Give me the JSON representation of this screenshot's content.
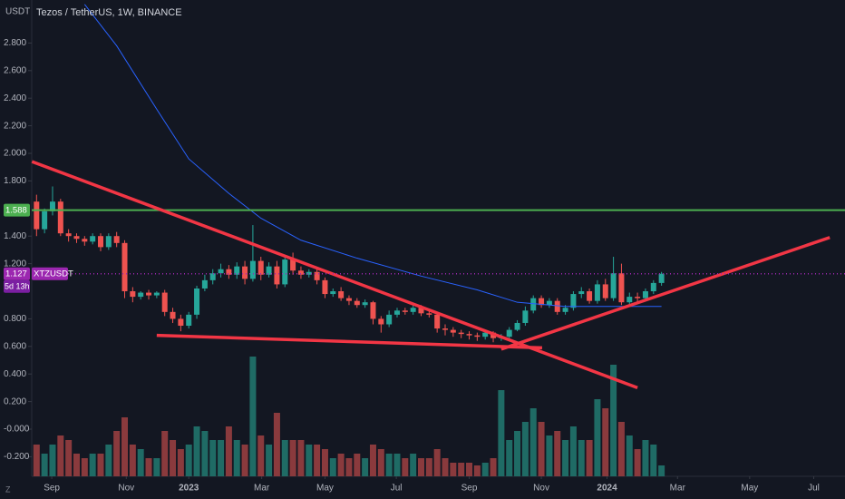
{
  "chart_data": {
    "type": "candlestick",
    "title": "Tezos / TetherUS, 1W, BINANCE",
    "currency": "USDT",
    "symbol": "XTZUSDT",
    "countdown": "5d 13h",
    "corner_label": "Z",
    "up_color": "#26a69a",
    "down_color": "#ef5350",
    "up_volume_color": "#1f6b65",
    "down_volume_color": "#8a3a3d",
    "open": [
      1.65,
      1.45,
      1.58,
      1.65,
      1.42,
      1.4,
      1.38,
      1.36,
      1.4,
      1.32,
      1.4,
      1.35,
      1.0,
      0.96,
      0.99,
      0.97,
      0.99,
      0.85,
      0.8,
      0.75,
      0.83,
      1.02,
      1.08,
      1.13,
      1.16,
      1.12,
      1.18,
      1.09,
      1.22,
      1.12,
      1.18,
      1.05,
      1.23,
      1.15,
      1.12,
      1.14,
      1.08,
      0.98,
      1.0,
      0.95,
      0.93,
      0.9,
      0.92,
      0.8,
      0.76,
      0.83,
      0.86,
      0.85,
      0.88,
      0.84,
      0.83,
      0.73,
      0.72,
      0.7,
      0.69,
      0.68,
      0.67,
      0.7,
      0.66,
      0.67,
      0.72,
      0.77,
      0.86,
      0.95,
      0.9,
      0.93,
      0.85,
      0.88,
      0.98,
      1.0,
      0.93,
      1.05,
      0.95,
      1.13,
      0.92,
      0.96,
      0.95,
      1.0,
      1.06
    ],
    "high": [
      1.7,
      1.6,
      1.76,
      1.67,
      1.45,
      1.42,
      1.4,
      1.42,
      1.42,
      1.42,
      1.43,
      1.37,
      1.03,
      1.0,
      1.01,
      1.0,
      1.01,
      0.88,
      0.83,
      0.85,
      1.04,
      1.12,
      1.16,
      1.2,
      1.19,
      1.21,
      1.22,
      1.48,
      1.25,
      1.21,
      1.22,
      1.26,
      1.28,
      1.18,
      1.16,
      1.16,
      1.1,
      1.02,
      1.03,
      0.97,
      0.95,
      0.94,
      0.93,
      0.82,
      0.86,
      0.88,
      0.88,
      0.9,
      0.9,
      0.86,
      0.85,
      0.76,
      0.74,
      0.72,
      0.71,
      0.7,
      0.72,
      0.71,
      0.69,
      0.74,
      0.79,
      0.89,
      0.97,
      0.97,
      0.95,
      0.95,
      0.9,
      1.0,
      1.03,
      1.02,
      1.08,
      1.09,
      1.25,
      1.2,
      0.99,
      0.99,
      1.02,
      1.08,
      1.14
    ],
    "low": [
      1.4,
      1.42,
      1.55,
      1.4,
      1.36,
      1.35,
      1.33,
      1.34,
      1.29,
      1.3,
      1.32,
      0.95,
      0.92,
      0.94,
      0.94,
      0.95,
      0.82,
      0.77,
      0.71,
      0.73,
      0.8,
      1.0,
      1.05,
      1.1,
      1.09,
      1.09,
      1.05,
      1.07,
      1.08,
      1.1,
      1.02,
      1.03,
      1.12,
      1.09,
      1.1,
      1.05,
      0.95,
      0.96,
      0.93,
      0.9,
      0.88,
      0.88,
      0.76,
      0.7,
      0.74,
      0.81,
      0.83,
      0.83,
      0.82,
      0.81,
      0.7,
      0.68,
      0.67,
      0.66,
      0.65,
      0.64,
      0.65,
      0.63,
      0.64,
      0.66,
      0.71,
      0.75,
      0.84,
      0.88,
      0.88,
      0.83,
      0.83,
      0.86,
      0.95,
      0.91,
      0.91,
      0.93,
      0.93,
      0.9,
      0.89,
      0.92,
      0.93,
      0.98,
      1.04
    ],
    "close": [
      1.45,
      1.58,
      1.65,
      1.42,
      1.4,
      1.38,
      1.36,
      1.4,
      1.32,
      1.4,
      1.35,
      1.0,
      0.96,
      0.99,
      0.97,
      0.99,
      0.85,
      0.8,
      0.75,
      0.83,
      1.02,
      1.08,
      1.13,
      1.16,
      1.12,
      1.18,
      1.09,
      1.22,
      1.12,
      1.18,
      1.05,
      1.23,
      1.15,
      1.12,
      1.14,
      1.08,
      0.98,
      1.0,
      0.95,
      0.93,
      0.9,
      0.92,
      0.8,
      0.76,
      0.83,
      0.86,
      0.85,
      0.88,
      0.84,
      0.83,
      0.73,
      0.72,
      0.7,
      0.69,
      0.68,
      0.67,
      0.7,
      0.66,
      0.67,
      0.72,
      0.77,
      0.86,
      0.95,
      0.9,
      0.93,
      0.85,
      0.88,
      0.98,
      1.0,
      0.93,
      1.05,
      0.95,
      1.13,
      0.92,
      0.96,
      0.95,
      1.0,
      1.06,
      1.127
    ],
    "volume": [
      35,
      25,
      35,
      45,
      40,
      25,
      20,
      25,
      25,
      35,
      50,
      65,
      35,
      30,
      20,
      20,
      50,
      40,
      30,
      35,
      55,
      50,
      40,
      40,
      55,
      40,
      35,
      132,
      45,
      35,
      70,
      40,
      40,
      40,
      35,
      35,
      30,
      20,
      25,
      20,
      25,
      20,
      35,
      30,
      25,
      25,
      20,
      25,
      20,
      20,
      30,
      20,
      15,
      15,
      15,
      12,
      15,
      20,
      95,
      40,
      50,
      60,
      75,
      60,
      45,
      50,
      40,
      55,
      40,
      40,
      85,
      75,
      123,
      60,
      45,
      30,
      40,
      35,
      12
    ],
    "ylim": [
      -0.342,
      3.112
    ],
    "yticks": [
      {
        "value": -0.2,
        "label": "-0.200"
      },
      {
        "value": 0,
        "label": "-0.000"
      },
      {
        "value": 0.2,
        "label": "0.200"
      },
      {
        "value": 0.4,
        "label": "0.400"
      },
      {
        "value": 0.6,
        "label": "0.600"
      },
      {
        "value": 0.8,
        "label": "0.800"
      },
      {
        "value": 1.2,
        "label": "1.200"
      },
      {
        "value": 1.4,
        "label": "1.400"
      },
      {
        "value": 1.8,
        "label": "1.800"
      },
      {
        "value": 2.0,
        "label": "2.000"
      },
      {
        "value": 2.2,
        "label": "2.200"
      },
      {
        "value": 2.4,
        "label": "2.400"
      },
      {
        "value": 2.6,
        "label": "2.600"
      },
      {
        "value": 2.8,
        "label": "2.800"
      }
    ],
    "xlim": [
      -0.6,
      100.9
    ],
    "xticks": [
      {
        "value": 1.9,
        "label": "Sep"
      },
      {
        "value": 11.2,
        "label": "Nov"
      },
      {
        "value": 19,
        "label": "2023"
      },
      {
        "value": 28.1,
        "label": "Mar"
      },
      {
        "value": 36,
        "label": "May"
      },
      {
        "value": 44.9,
        "label": "Jul"
      },
      {
        "value": 54,
        "label": "Sep"
      },
      {
        "value": 63,
        "label": "Nov"
      },
      {
        "value": 71.2,
        "label": "2024"
      },
      {
        "value": 80,
        "label": "Mar"
      },
      {
        "value": 89,
        "label": "May"
      },
      {
        "value": 97,
        "label": "Jul"
      }
    ],
    "grid": false,
    "ma": {
      "color": "#2962ff",
      "x": [
        6,
        10,
        15,
        19,
        24,
        28,
        33,
        40,
        48,
        55,
        60,
        66,
        72,
        78
      ],
      "values": [
        3.08,
        2.78,
        2.32,
        1.96,
        1.71,
        1.53,
        1.37,
        1.24,
        1.11,
        1.01,
        0.92,
        0.89,
        0.89,
        0.89
      ]
    },
    "levels": [
      {
        "value": 1.588,
        "color": "#4caf50"
      }
    ],
    "trendlines": [
      {
        "color": "#f23645",
        "x": [
          -0.57,
          75
        ],
        "values": [
          1.94,
          0.3
        ]
      },
      {
        "color": "#f23645",
        "x": [
          15,
          63.1
        ],
        "values": [
          0.68,
          0.59
        ]
      },
      {
        "color": "#f23645",
        "x": [
          58,
          99
        ],
        "values": [
          0.58,
          1.39
        ]
      }
    ],
    "last_price": 1.127,
    "last_price_color": "#9c27b0"
  }
}
